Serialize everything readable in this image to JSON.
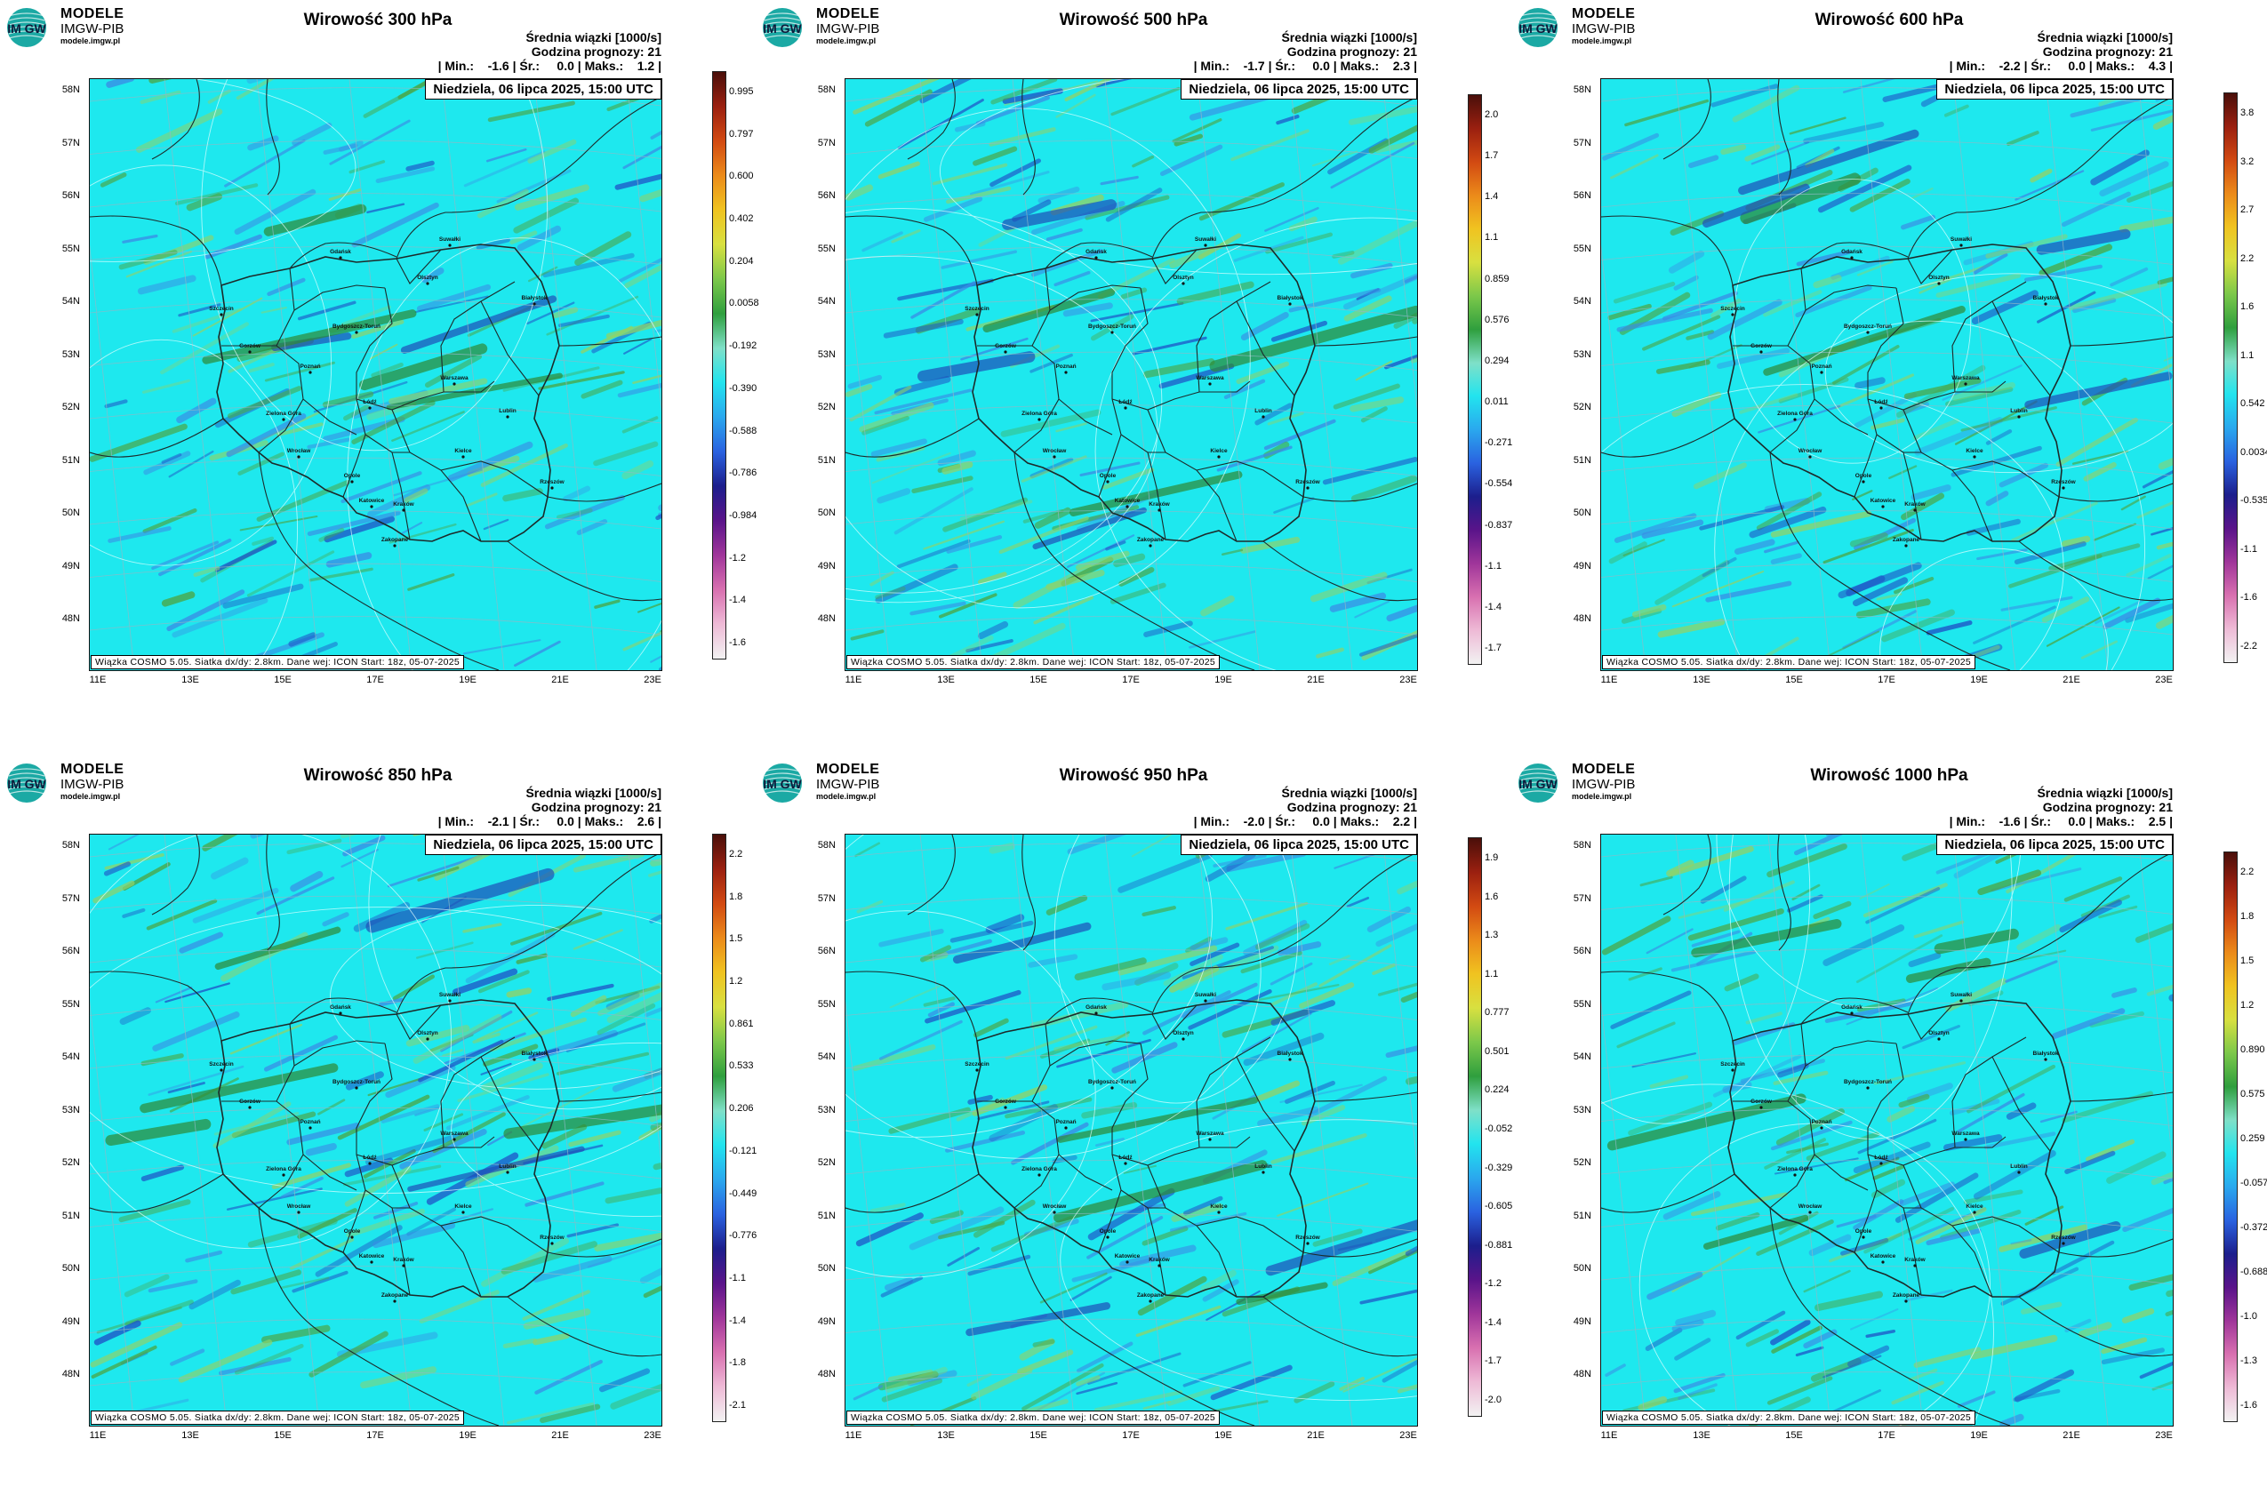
{
  "brand": {
    "logo_text": "IM GW",
    "line1": "MODELE",
    "line2": "IMGW-PIB",
    "line3": "modele.imgw.pl"
  },
  "common": {
    "subtitle": "Średnia wiązki [1000/s]",
    "forecast_hour": "Godzina prognozy: 21",
    "date": "Niedziela, 06 lipca 2025, 15:00 UTC",
    "footer": "Wiązka COSMO 5.05. Siatka dx/dy: 2.8km. Dane wej: ICON Start: 18z, 05-07-2025",
    "lat_labels": [
      "58N",
      "57N",
      "56N",
      "55N",
      "54N",
      "53N",
      "52N",
      "51N",
      "50N",
      "49N",
      "48N"
    ],
    "lon_labels": [
      "11E",
      "13E",
      "15E",
      "17E",
      "19E",
      "21E",
      "23E"
    ],
    "cities": [
      "Gdańsk",
      "Suwałki",
      "Olsztyn",
      "Szczecin",
      "Białystok",
      "Bydgoszcz-Toruń",
      "Gorzów",
      "Poznań",
      "Warszawa",
      "Łódź",
      "Zielona Góra",
      "Lublin",
      "Wrocław",
      "Kielce",
      "Opole",
      "Rzeszów",
      "Katowice",
      "Kraków",
      "Zakopane"
    ]
  },
  "colors": {
    "background_field": "#1ee8ee",
    "positive_green": "#3e9a3c",
    "negative_blue": "#2b78e0",
    "border": "#1c2a2a"
  },
  "panels": [
    {
      "title": "Wirowość 300 hPa",
      "stats": "| Min.:    -1.6 | Śr.:     0.0 | Maks.:    1.2 |",
      "colorbar": [
        "0.995",
        "0.797",
        "0.600",
        "0.402",
        "0.204",
        "0.0058",
        "-0.192",
        "-0.390",
        "-0.588",
        "-0.786",
        "-0.984",
        "-1.2",
        "-1.4",
        "-1.6"
      ]
    },
    {
      "title": "Wirowość 500 hPa",
      "stats": "| Min.:    -1.7 | Śr.:     0.0 | Maks.:    2.3 |",
      "colorbar": [
        "2.0",
        "1.7",
        "1.4",
        "1.1",
        "0.859",
        "0.576",
        "0.294",
        "0.011",
        "-0.271",
        "-0.554",
        "-0.837",
        "-1.1",
        "-1.4",
        "-1.7"
      ]
    },
    {
      "title": "Wirowość 600 hPa",
      "stats": "| Min.:    -2.2 | Śr.:     0.0 | Maks.:    4.3 |",
      "colorbar": [
        "3.8",
        "3.2",
        "2.7",
        "2.2",
        "1.6",
        "1.1",
        "0.542",
        "0.0034",
        "-0.535",
        "-1.1",
        "-1.6",
        "-2.2"
      ]
    },
    {
      "title": "Wirowość 850 hPa",
      "stats": "| Min.:    -2.1 | Śr.:     0.0 | Maks.:    2.6 |",
      "colorbar": [
        "2.2",
        "1.8",
        "1.5",
        "1.2",
        "0.861",
        "0.533",
        "0.206",
        "-0.121",
        "-0.449",
        "-0.776",
        "-1.1",
        "-1.4",
        "-1.8",
        "-2.1"
      ]
    },
    {
      "title": "Wirowość 950 hPa",
      "stats": "| Min.:    -2.0 | Śr.:     0.0 | Maks.:    2.2 |",
      "colorbar": [
        "1.9",
        "1.6",
        "1.3",
        "1.1",
        "0.777",
        "0.501",
        "0.224",
        "-0.052",
        "-0.329",
        "-0.605",
        "-0.881",
        "-1.2",
        "-1.4",
        "-1.7",
        "-2.0"
      ]
    },
    {
      "title": "Wirowość 1000 hPa",
      "stats": "| Min.:    -1.6 | Śr.:     0.0 | Maks.:    2.5 |",
      "colorbar": [
        "2.2",
        "1.8",
        "1.5",
        "1.2",
        "0.890",
        "0.575",
        "0.259",
        "-0.057",
        "-0.372",
        "-0.688",
        "-1.0",
        "-1.3",
        "-1.6"
      ]
    }
  ]
}
